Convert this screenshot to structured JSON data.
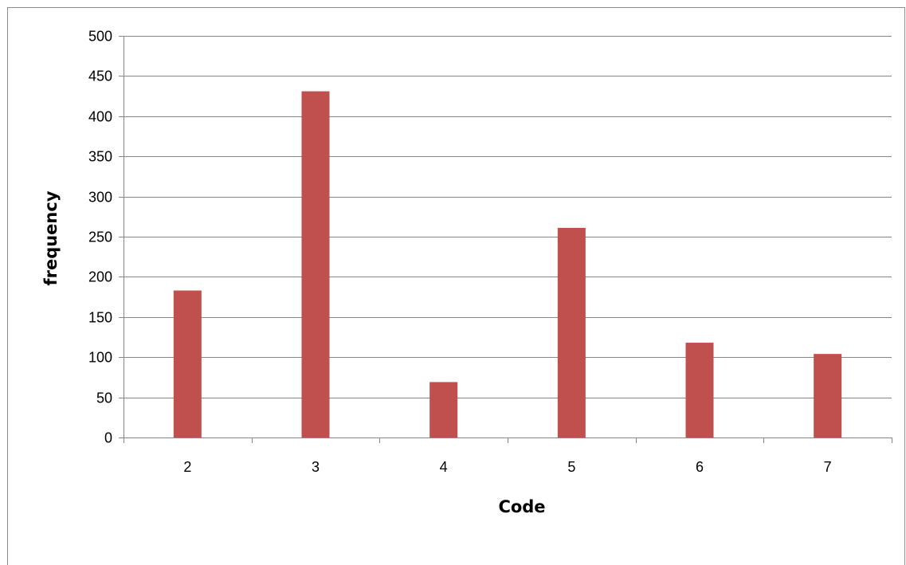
{
  "chart_data": {
    "type": "bar",
    "categories": [
      "2",
      "3",
      "4",
      "5",
      "6",
      "7"
    ],
    "series": [
      {
        "values": [
          183,
          431,
          69,
          261,
          118,
          104
        ]
      }
    ],
    "title": "",
    "xlabel": "Code",
    "ylabel": "frequency",
    "ylim": [
      0,
      500
    ],
    "ytick_step": 50,
    "grid": true,
    "legend": "none",
    "bar_color": "#c0504d",
    "grid_color": "#868686"
  }
}
